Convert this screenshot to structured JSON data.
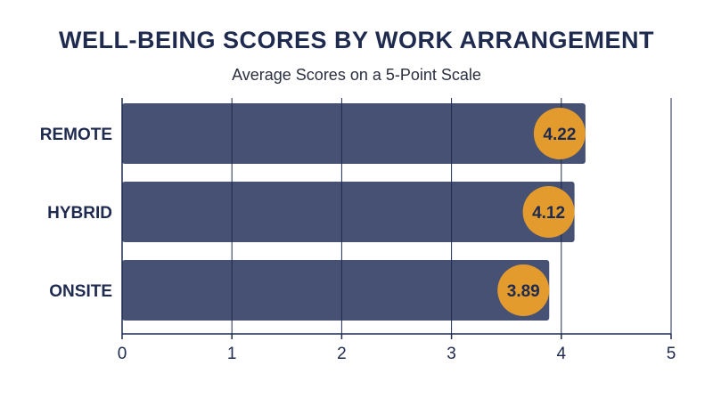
{
  "chart_data": {
    "type": "bar",
    "orientation": "horizontal",
    "title": "WELL-BEING SCORES BY WORK ARRANGEMENT",
    "subtitle": "Average Scores on a 5-Point Scale",
    "categories": [
      "REMOTE",
      "HYBRID",
      "ONSITE"
    ],
    "values": [
      4.22,
      4.12,
      3.89
    ],
    "value_labels": [
      "4.22",
      "4.12",
      "3.89"
    ],
    "xlim": [
      0,
      5
    ],
    "xticks": [
      "0",
      "1",
      "2",
      "3",
      "4",
      "5"
    ],
    "grid": true,
    "colors": {
      "bar": "#465173",
      "badge": "#e39b2e",
      "text": "#1f2a4f",
      "grid": "#1f2a4f"
    }
  }
}
